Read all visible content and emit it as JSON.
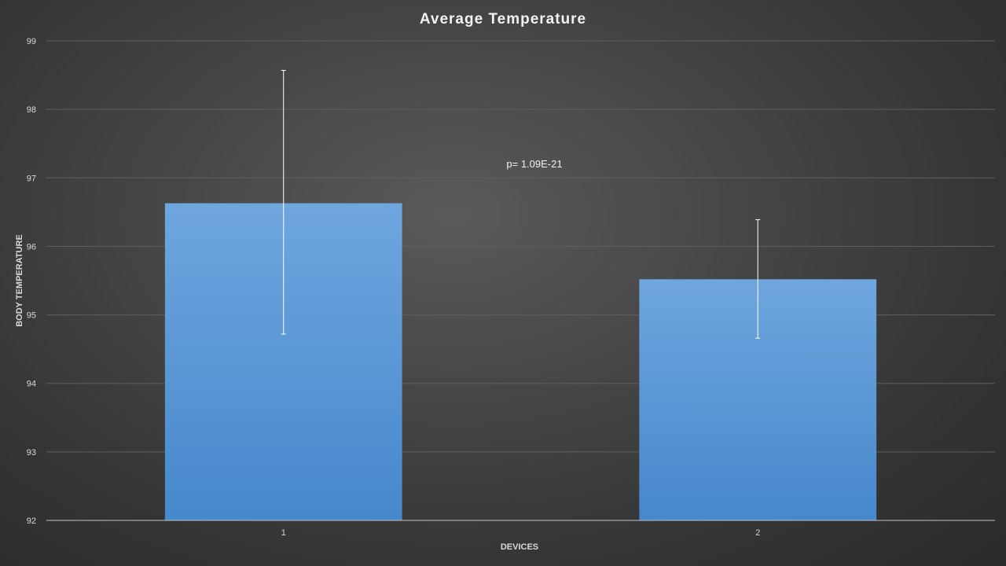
{
  "chart_data": {
    "type": "bar",
    "title": "Average Temperature",
    "xlabel": "DEVICES",
    "ylabel": "BODY TEMPERATURE",
    "categories": [
      "1",
      "2"
    ],
    "values": [
      96.63,
      95.52
    ],
    "error_bars": [
      {
        "low": 94.72,
        "high": 98.57
      },
      {
        "low": 94.66,
        "high": 96.39
      }
    ],
    "ylim": [
      92,
      99
    ],
    "y_ticks": [
      "92",
      "93",
      "94",
      "95",
      "96",
      "97",
      "98",
      "99"
    ],
    "annotation": "p= 1.09E-21",
    "grid": true,
    "legend": "none",
    "colors": {
      "bar_top": "#6fa6de",
      "bar_bottom": "#4688cc",
      "grid": "#5f5f5f",
      "axis": "#bfbfbf",
      "error_bar": "#ffffff"
    }
  }
}
